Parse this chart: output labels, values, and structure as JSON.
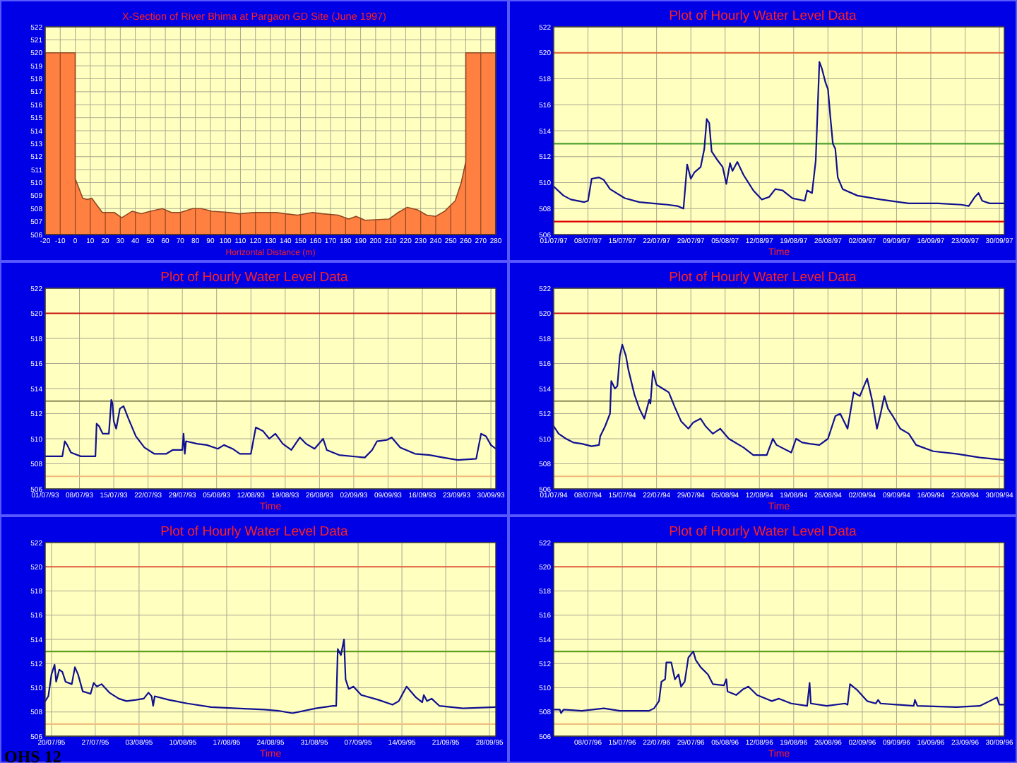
{
  "chart_data": [
    {
      "type": "area",
      "title": "X-Section of River Bhima at Pargaon GD Site (June 1997)",
      "xlabel": "Horizontal Distance (m)",
      "x": [
        -20,
        0,
        0,
        5,
        8,
        11,
        18,
        26,
        31,
        38,
        44,
        50,
        58,
        64,
        70,
        78,
        84,
        91,
        103,
        109,
        119,
        134,
        140,
        148,
        158,
        165,
        175,
        182,
        187,
        193,
        209,
        215,
        221,
        228,
        234,
        240,
        246,
        253,
        257,
        260,
        260,
        280
      ],
      "values": [
        520,
        520,
        510.3,
        508.8,
        508.7,
        508.8,
        507.7,
        507.7,
        507.3,
        507.8,
        507.6,
        507.8,
        508.0,
        507.7,
        507.7,
        508.0,
        508.0,
        507.8,
        507.7,
        507.6,
        507.7,
        507.7,
        507.6,
        507.5,
        507.7,
        507.6,
        507.5,
        507.2,
        507.4,
        507.1,
        507.2,
        507.7,
        508.1,
        507.9,
        507.5,
        507.4,
        507.8,
        508.6,
        510.0,
        511.6,
        520,
        520
      ],
      "color": "#ff8040",
      "xlim": [
        -20,
        280
      ],
      "xticks": [
        -20,
        -10,
        0,
        10,
        20,
        30,
        40,
        50,
        60,
        70,
        80,
        90,
        100,
        110,
        120,
        130,
        140,
        150,
        160,
        170,
        180,
        190,
        200,
        210,
        220,
        230,
        240,
        250,
        260,
        270,
        280
      ],
      "ylim": [
        506,
        522
      ],
      "yticks": [
        506,
        507,
        508,
        509,
        510,
        511,
        512,
        513,
        514,
        515,
        516,
        517,
        518,
        519,
        520,
        521,
        522
      ],
      "grid": true
    },
    {
      "type": "line",
      "title": "Plot of Hourly Water Level Data",
      "xlabel": "Time",
      "x": [
        "1997-07-01T00:00",
        "1997-07-03T00:00",
        "1997-07-04T12:00",
        "1997-07-07T06:00",
        "1997-07-08T00:00",
        "1997-07-08T18:00",
        "1997-07-10T06:00",
        "1997-07-11T06:00",
        "1997-07-12T12:00",
        "1997-07-15T12:00",
        "1997-07-18T12:00",
        "1997-07-21T06:00",
        "1997-07-24T06:00",
        "1997-07-26T06:00",
        "1997-07-27T12:00",
        "1997-07-28T06:00",
        "1997-07-29T00:00",
        "1997-07-29T18:00",
        "1997-07-31T00:00",
        "1997-07-31T18:00",
        "1997-08-01T06:00",
        "1997-08-01T18:00",
        "1997-08-02T06:00",
        "1997-08-03T12:00",
        "1997-08-04T12:00",
        "1997-08-05T06:00",
        "1997-08-06T00:00",
        "1997-08-06T12:00",
        "1997-08-07T12:00",
        "1997-08-08T18:00",
        "1997-08-10T18:00",
        "1997-08-12T12:00",
        "1997-08-14T00:00",
        "1997-08-15T06:00",
        "1997-08-16T18:00",
        "1997-08-18T18:00",
        "1997-08-21T06:00",
        "1997-08-21T18:00",
        "1997-08-22T18:00",
        "1997-08-23T12:00",
        "1997-08-24T06:00",
        "1997-08-24T18:00",
        "1997-08-25T12:00",
        "1997-08-26T00:00",
        "1997-08-26T12:00",
        "1997-08-27T00:00",
        "1997-08-27T12:00",
        "1997-08-28T00:00",
        "1997-08-29T00:00",
        "1997-09-01T00:00",
        "1997-09-05T18:00",
        "1997-09-11T12:00",
        "1997-09-17T12:00",
        "1997-09-22T06:00",
        "1997-09-23T18:00",
        "1997-09-25T00:00",
        "1997-09-25T18:00",
        "1997-09-26T12:00",
        "1997-09-28T00:00",
        "1997-10-01T00:00"
      ],
      "values": [
        509.7,
        509.0,
        508.7,
        508.5,
        508.6,
        510.3,
        510.4,
        510.2,
        509.5,
        508.8,
        508.5,
        508.4,
        508.3,
        508.2,
        508.0,
        511.4,
        510.3,
        510.8,
        511.2,
        512.6,
        514.9,
        514.6,
        512.4,
        511.7,
        511.2,
        509.9,
        511.5,
        510.9,
        511.6,
        510.6,
        509.4,
        508.7,
        508.9,
        509.5,
        509.4,
        508.8,
        508.6,
        509.4,
        509.2,
        511.7,
        519.3,
        518.8,
        517.7,
        517.2,
        515.0,
        513.0,
        512.6,
        510.4,
        509.5,
        509.0,
        508.7,
        508.4,
        508.4,
        508.3,
        508.2,
        508.9,
        509.2,
        508.6,
        508.4,
        508.4
      ],
      "color": "#101090",
      "xlim": [
        "1997-07-01",
        "1997-10-01"
      ],
      "xticks": [
        {
          "value": "1997-07-01",
          "label": "01/07/97"
        },
        {
          "value": "1997-07-08",
          "label": "08/07/97"
        },
        {
          "value": "1997-07-15",
          "label": "15/07/97"
        },
        {
          "value": "1997-07-22",
          "label": "22/07/97"
        },
        {
          "value": "1997-07-29",
          "label": "29/07/97"
        },
        {
          "value": "1997-08-05",
          "label": "05/08/97"
        },
        {
          "value": "1997-08-12",
          "label": "12/08/97"
        },
        {
          "value": "1997-08-19",
          "label": "19/08/97"
        },
        {
          "value": "1997-08-26",
          "label": "26/08/97"
        },
        {
          "value": "1997-09-02",
          "label": "02/09/97"
        },
        {
          "value": "1997-09-09",
          "label": "09/09/97"
        },
        {
          "value": "1997-09-16",
          "label": "16/09/97"
        },
        {
          "value": "1997-09-23",
          "label": "23/09/97"
        },
        {
          "value": "1997-09-30",
          "label": "30/09/97"
        }
      ],
      "ylim": [
        506,
        522
      ],
      "yticks": [
        506,
        508,
        510,
        512,
        514,
        516,
        518,
        520,
        522
      ],
      "grid": true,
      "ref_lines": [
        {
          "axis": "y",
          "value": 520,
          "color": "#e06030"
        },
        {
          "axis": "y",
          "value": 513,
          "color": "#50a030"
        },
        {
          "axis": "y",
          "value": 507,
          "color": "#e00000"
        }
      ]
    },
    {
      "type": "line",
      "title": "Plot of Hourly Water Level Data",
      "xlabel": "Time",
      "x": [
        "1993-07-01T00:00",
        "1993-07-04T12:00",
        "1993-07-05T00:00",
        "1993-07-05T12:00",
        "1993-07-06T06:00",
        "1993-07-08T06:00",
        "1993-07-11T06:00",
        "1993-07-11T12:00",
        "1993-07-12T00:00",
        "1993-07-12T18:00",
        "1993-07-14T00:00",
        "1993-07-14T12:00",
        "1993-07-14T18:00",
        "1993-07-15T00:00",
        "1993-07-15T12:00",
        "1993-07-16T06:00",
        "1993-07-17T00:00",
        "1993-07-18T00:00",
        "1993-07-19T12:00",
        "1993-07-21T06:00",
        "1993-07-23T06:00",
        "1993-07-25T18:00",
        "1993-07-27T00:00",
        "1993-07-29T00:00",
        "1993-07-29T06:00",
        "1993-07-29T12:00",
        "1993-07-29T18:00",
        "1993-08-01T00:00",
        "1993-08-03T00:00",
        "1993-08-05T06:00",
        "1993-08-06T12:00",
        "1993-08-08T06:00",
        "1993-08-09T18:00",
        "1993-08-12T00:00",
        "1993-08-13T00:00",
        "1993-08-14T12:00",
        "1993-08-15T18:00",
        "1993-08-17T00:00",
        "1993-08-18T12:00",
        "1993-08-20T06:00",
        "1993-08-22T00:00",
        "1993-08-23T06:00",
        "1993-08-25T00:00",
        "1993-08-26T18:00",
        "1993-08-27T12:00",
        "1993-08-30T00:00",
        "1993-09-04T06:00",
        "1993-09-05T18:00",
        "1993-09-06T18:00",
        "1993-09-08T18:00",
        "1993-09-09T18:00",
        "1993-09-11T12:00",
        "1993-09-14T12:00",
        "1993-09-17T12:00",
        "1993-09-20T06:00",
        "1993-09-23T06:00",
        "1993-09-27T00:00",
        "1993-09-28T00:00",
        "1993-09-29T00:00",
        "1993-09-30T00:00",
        "1993-10-01T00:00"
      ],
      "values": [
        508.6,
        508.6,
        509.8,
        509.5,
        508.9,
        508.6,
        508.6,
        511.2,
        511.0,
        510.4,
        510.4,
        513.1,
        512.8,
        511.4,
        510.8,
        512.4,
        512.6,
        511.6,
        510.2,
        509.3,
        508.8,
        508.8,
        509.1,
        509.1,
        510.4,
        508.8,
        509.8,
        509.6,
        509.5,
        509.2,
        509.5,
        509.2,
        508.8,
        508.8,
        510.9,
        510.6,
        510.0,
        510.4,
        509.6,
        509.1,
        510.1,
        509.6,
        509.2,
        510.0,
        509.1,
        508.7,
        508.5,
        509.1,
        509.8,
        509.9,
        510.1,
        509.3,
        508.8,
        508.7,
        508.5,
        508.3,
        508.4,
        510.4,
        510.2,
        509.5,
        509.2
      ],
      "color": "#101090",
      "xlim": [
        "1993-07-01",
        "1993-10-01"
      ],
      "xticks": [
        {
          "value": "1993-07-01",
          "label": "01/07/93"
        },
        {
          "value": "1993-07-08",
          "label": "08/07/93"
        },
        {
          "value": "1993-07-15",
          "label": "15/07/93"
        },
        {
          "value": "1993-07-22",
          "label": "22/07/93"
        },
        {
          "value": "1993-07-29",
          "label": "29/07/93"
        },
        {
          "value": "1993-08-05",
          "label": "05/08/93"
        },
        {
          "value": "1993-08-12",
          "label": "12/08/93"
        },
        {
          "value": "1993-08-19",
          "label": "19/08/93"
        },
        {
          "value": "1993-08-26",
          "label": "26/08/93"
        },
        {
          "value": "1993-09-02",
          "label": "02/09/93"
        },
        {
          "value": "1993-09-09",
          "label": "09/09/93"
        },
        {
          "value": "1993-09-16",
          "label": "16/09/93"
        },
        {
          "value": "1993-09-23",
          "label": "23/09/93"
        },
        {
          "value": "1993-09-30",
          "label": "30/09/93"
        }
      ],
      "ylim": [
        506,
        522
      ],
      "yticks": [
        506,
        508,
        510,
        512,
        514,
        516,
        518,
        520,
        522
      ],
      "grid": true,
      "ref_lines": [
        {
          "axis": "y",
          "value": 520,
          "color": "#c81010"
        },
        {
          "axis": "y",
          "value": 513,
          "color": "#8c8c58"
        },
        {
          "axis": "y",
          "value": 507,
          "color": "#f0b878"
        }
      ]
    },
    {
      "type": "line",
      "title": "Plot of Hourly Water Level Data",
      "xlabel": "Time",
      "x": [
        "1994-07-01T00:00",
        "1994-07-02T00:00",
        "1994-07-03T12:00",
        "1994-07-05T00:00",
        "1994-07-06T18:00",
        "1994-07-08T18:00",
        "1994-07-10T06:00",
        "1994-07-10T12:00",
        "1994-07-11T12:00",
        "1994-07-12T12:00",
        "1994-07-12T18:00",
        "1994-07-13T12:00",
        "1994-07-14T00:00",
        "1994-07-14T12:00",
        "1994-07-15T00:00",
        "1994-07-15T18:00",
        "1994-07-16T06:00",
        "1994-07-17T12:00",
        "1994-07-18T12:00",
        "1994-07-19T12:00",
        "1994-07-20T12:00",
        "1994-07-20T18:00",
        "1994-07-21T06:00",
        "1994-07-22T00:00",
        "1994-07-23T06:00",
        "1994-07-24T12:00",
        "1994-07-25T18:00",
        "1994-07-27T00:00",
        "1994-07-28T12:00",
        "1994-07-29T12:00",
        "1994-07-31T00:00",
        "1994-08-01T00:00",
        "1994-08-02T12:00",
        "1994-08-04T00:00",
        "1994-08-05T18:00",
        "1994-08-08T18:00",
        "1994-08-10T18:00",
        "1994-08-13T12:00",
        "1994-08-14T18:00",
        "1994-08-15T12:00",
        "1994-08-18T12:00",
        "1994-08-19T12:00",
        "1994-08-20T18:00",
        "1994-08-22T06:00",
        "1994-08-24T06:00",
        "1994-08-26T00:00",
        "1994-08-27T12:00",
        "1994-08-28T12:00",
        "1994-08-30T00:00",
        "1994-08-31T06:00",
        "1994-09-01T12:00",
        "1994-09-03T00:00",
        "1994-09-04T00:00",
        "1994-09-05T00:00",
        "1994-09-05T18:00",
        "1994-09-06T12:00",
        "1994-09-07T06:00",
        "1994-09-08T06:00",
        "1994-09-09T18:00",
        "1994-09-11T12:00",
        "1994-09-13T00:00",
        "1994-09-16T12:00",
        "1994-09-21T06:00",
        "1994-09-26T00:00",
        "1994-10-01T00:00"
      ],
      "values": [
        511.0,
        510.4,
        510.0,
        509.7,
        509.6,
        509.4,
        509.5,
        510.2,
        511.0,
        512.0,
        514.6,
        514.0,
        514.2,
        516.6,
        517.5,
        516.6,
        515.5,
        513.5,
        512.4,
        511.6,
        513.1,
        512.8,
        515.4,
        514.3,
        514.0,
        513.7,
        512.5,
        511.4,
        510.8,
        511.3,
        511.6,
        511.0,
        510.4,
        510.8,
        510.0,
        509.3,
        508.7,
        508.7,
        510.0,
        509.5,
        508.9,
        510.0,
        509.7,
        509.6,
        509.5,
        510.0,
        511.8,
        512.0,
        510.8,
        513.7,
        513.4,
        514.8,
        513.1,
        510.8,
        512.0,
        513.4,
        512.4,
        511.8,
        510.8,
        510.4,
        509.5,
        509.0,
        508.8,
        508.5,
        508.3
      ],
      "color": "#101090",
      "xlim": [
        "1994-07-01",
        "1994-10-01"
      ],
      "xticks": [
        {
          "value": "1994-07-01",
          "label": "01/07/94"
        },
        {
          "value": "1994-07-08",
          "label": "08/07/94"
        },
        {
          "value": "1994-07-15",
          "label": "15/07/94"
        },
        {
          "value": "1994-07-22",
          "label": "22/07/94"
        },
        {
          "value": "1994-07-29",
          "label": "29/07/94"
        },
        {
          "value": "1994-08-05",
          "label": "05/08/94"
        },
        {
          "value": "1994-08-12",
          "label": "12/08/94"
        },
        {
          "value": "1994-08-19",
          "label": "19/08/94"
        },
        {
          "value": "1994-08-26",
          "label": "26/08/94"
        },
        {
          "value": "1994-09-02",
          "label": "02/09/94"
        },
        {
          "value": "1994-09-09",
          "label": "09/09/94"
        },
        {
          "value": "1994-09-16",
          "label": "16/09/94"
        },
        {
          "value": "1994-09-23",
          "label": "23/09/94"
        },
        {
          "value": "1994-09-30",
          "label": "30/09/94"
        }
      ],
      "ylim": [
        506,
        522
      ],
      "yticks": [
        506,
        508,
        510,
        512,
        514,
        516,
        518,
        520,
        522
      ],
      "grid": true,
      "ref_lines": [
        {
          "axis": "y",
          "value": 520,
          "color": "#c81010"
        },
        {
          "axis": "y",
          "value": 513,
          "color": "#8c8c58"
        },
        {
          "axis": "y",
          "value": 507,
          "color": "#f0b878"
        }
      ]
    },
    {
      "type": "line",
      "title": "Plot of Hourly Water Level Data",
      "xlabel": "Time",
      "x": [
        "1995-07-19T00:00",
        "1995-07-19T12:00",
        "1995-07-20T00:00",
        "1995-07-20T12:00",
        "1995-07-20T18:00",
        "1995-07-21T06:00",
        "1995-07-21T18:00",
        "1995-07-22T06:00",
        "1995-07-23T06:00",
        "1995-07-23T18:00",
        "1995-07-24T06:00",
        "1995-07-25T00:00",
        "1995-07-26T06:00",
        "1995-07-26T18:00",
        "1995-07-27T06:00",
        "1995-07-28T00:00",
        "1995-07-29T06:00",
        "1995-07-30T18:00",
        "1995-08-01T00:00",
        "1995-08-02T12:00",
        "1995-08-03T18:00",
        "1995-08-04T12:00",
        "1995-08-05T00:00",
        "1995-08-05T06:00",
        "1995-08-05T12:00",
        "1995-08-07T18:00",
        "1995-08-10T18:00",
        "1995-08-14T12:00",
        "1995-08-18T12:00",
        "1995-08-23T00:00",
        "1995-08-25T06:00",
        "1995-08-27T12:00",
        "1995-08-31T06:00",
        "1995-09-03T00:00",
        "1995-09-03T12:00",
        "1995-09-03T18:00",
        "1995-09-04T06:00",
        "1995-09-04T18:00",
        "1995-09-05T00:00",
        "1995-09-05T12:00",
        "1995-09-06T06:00",
        "1995-09-07T12:00",
        "1995-09-10T06:00",
        "1995-09-12T12:00",
        "1995-09-13T12:00",
        "1995-09-14T18:00",
        "1995-09-15T06:00",
        "1995-09-16T06:00",
        "1995-09-17T06:00",
        "1995-09-17T12:00",
        "1995-09-18T00:00",
        "1995-09-18T18:00",
        "1995-09-20T00:00",
        "1995-09-23T18:00",
        "1995-09-29T00:00"
      ],
      "values": [
        508.9,
        509.3,
        511.1,
        511.9,
        510.5,
        511.5,
        511.3,
        510.5,
        510.3,
        511.7,
        511.1,
        509.7,
        509.5,
        510.4,
        510.1,
        510.3,
        509.6,
        509.1,
        508.9,
        509.0,
        509.1,
        509.6,
        509.3,
        508.5,
        509.3,
        509.0,
        508.7,
        508.4,
        508.3,
        508.2,
        508.1,
        507.9,
        508.3,
        508.5,
        508.5,
        513.2,
        512.7,
        514.0,
        510.7,
        509.9,
        510.1,
        509.4,
        509.0,
        508.6,
        508.9,
        510.1,
        509.8,
        509.2,
        508.8,
        509.4,
        508.9,
        509.1,
        508.5,
        508.3,
        508.4
      ],
      "color": "#101090",
      "xlim": [
        "1995-07-19",
        "1995-09-29"
      ],
      "xticks": [
        {
          "value": "1995-07-20",
          "label": "20/07/95"
        },
        {
          "value": "1995-07-27",
          "label": "27/07/95"
        },
        {
          "value": "1995-08-03",
          "label": "03/08/95"
        },
        {
          "value": "1995-08-10",
          "label": "10/08/95"
        },
        {
          "value": "1995-08-17",
          "label": "17/08/95"
        },
        {
          "value": "1995-08-24",
          "label": "24/08/95"
        },
        {
          "value": "1995-08-31",
          "label": "31/08/95"
        },
        {
          "value": "1995-09-07",
          "label": "07/09/95"
        },
        {
          "value": "1995-09-14",
          "label": "14/09/95"
        },
        {
          "value": "1995-09-21",
          "label": "21/09/95"
        },
        {
          "value": "1995-09-28",
          "label": "28/09/95"
        }
      ],
      "ylim": [
        506,
        522
      ],
      "yticks": [
        506,
        508,
        510,
        512,
        514,
        516,
        518,
        520,
        522
      ],
      "grid": true,
      "ref_lines": [
        {
          "axis": "y",
          "value": 520,
          "color": "#e06040"
        },
        {
          "axis": "y",
          "value": 513,
          "color": "#60a020"
        },
        {
          "axis": "y",
          "value": 507,
          "color": "#f0c080"
        }
      ],
      "annotations": [
        "OHS 12"
      ]
    },
    {
      "type": "line",
      "title": "Plot of Hourly Water Level Data",
      "xlabel": "Time",
      "x": [
        "1996-07-01T00:00",
        "1996-07-02T06:00",
        "1996-07-02T12:00",
        "1996-07-03T00:00",
        "1996-07-06T18:00",
        "1996-07-11T06:00",
        "1996-07-14T12:00",
        "1996-07-20T12:00",
        "1996-07-21T12:00",
        "1996-07-22T12:00",
        "1996-07-23T00:00",
        "1996-07-23T18:00",
        "1996-07-24T00:00",
        "1996-07-25T00:00",
        "1996-07-25T18:00",
        "1996-07-26T12:00",
        "1996-07-27T00:00",
        "1996-07-27T18:00",
        "1996-07-28T12:00",
        "1996-07-29T12:00",
        "1996-07-30T00:00",
        "1996-07-31T00:00",
        "1996-08-01T12:00",
        "1996-08-02T12:00",
        "1996-08-04T18:00",
        "1996-08-05T06:00",
        "1996-08-05T12:00",
        "1996-08-07T06:00",
        "1996-08-08T18:00",
        "1996-08-09T18:00",
        "1996-08-11T12:00",
        "1996-08-14T12:00",
        "1996-08-16T00:00",
        "1996-08-18T12:00",
        "1996-08-21T18:00",
        "1996-08-22T06:00",
        "1996-08-22T12:00",
        "1996-08-25T18:00",
        "1996-08-29T12:00",
        "1996-08-30T00:00",
        "1996-08-30T12:00",
        "1996-09-01T00:00",
        "1996-09-03T00:00",
        "1996-09-04T18:00",
        "1996-09-05T06:00",
        "1996-09-05T18:00",
        "1996-09-12T12:00",
        "1996-09-12T18:00",
        "1996-09-13T06:00",
        "1996-09-21T06:00",
        "1996-09-26T00:00",
        "1996-09-28T12:00",
        "1996-09-29T12:00",
        "1996-09-30T00:00",
        "1996-10-01T00:00"
      ],
      "values": [
        508.2,
        508.2,
        507.9,
        508.2,
        508.1,
        508.3,
        508.1,
        508.1,
        508.3,
        508.9,
        510.5,
        510.7,
        512.1,
        512.1,
        510.7,
        511.1,
        510.1,
        510.5,
        512.5,
        513.0,
        512.3,
        511.7,
        511.1,
        510.3,
        510.2,
        510.7,
        509.7,
        509.4,
        509.9,
        510.1,
        509.4,
        508.9,
        509.1,
        508.7,
        508.5,
        510.4,
        508.7,
        508.5,
        508.7,
        508.6,
        510.3,
        509.8,
        508.9,
        508.7,
        509.0,
        508.7,
        508.5,
        509.0,
        508.5,
        508.4,
        508.5,
        509.0,
        509.2,
        508.6,
        508.6
      ],
      "color": "#101090",
      "xlim": [
        "1996-07-01",
        "1996-10-01"
      ],
      "xticks": [
        {
          "value": "1996-07-08",
          "label": "08/07/96"
        },
        {
          "value": "1996-07-15",
          "label": "15/07/96"
        },
        {
          "value": "1996-07-22",
          "label": "22/07/96"
        },
        {
          "value": "1996-07-29",
          "label": "29/07/96"
        },
        {
          "value": "1996-08-05",
          "label": "05/08/96"
        },
        {
          "value": "1996-08-12",
          "label": "12/08/96"
        },
        {
          "value": "1996-08-19",
          "label": "19/08/96"
        },
        {
          "value": "1996-08-26",
          "label": "26/08/96"
        },
        {
          "value": "1996-09-02",
          "label": "02/09/96"
        },
        {
          "value": "1996-09-09",
          "label": "09/09/96"
        },
        {
          "value": "1996-09-16",
          "label": "16/09/96"
        },
        {
          "value": "1996-09-23",
          "label": "23/09/96"
        },
        {
          "value": "1996-09-30",
          "label": "30/09/96"
        }
      ],
      "ylim": [
        506,
        522
      ],
      "yticks": [
        506,
        508,
        510,
        512,
        514,
        516,
        518,
        520,
        522
      ],
      "grid": true,
      "ref_lines": [
        {
          "axis": "y",
          "value": 520,
          "color": "#e06040"
        },
        {
          "axis": "y",
          "value": 513,
          "color": "#60a020"
        },
        {
          "axis": "y",
          "value": 507,
          "color": "#f0c080"
        }
      ]
    }
  ]
}
